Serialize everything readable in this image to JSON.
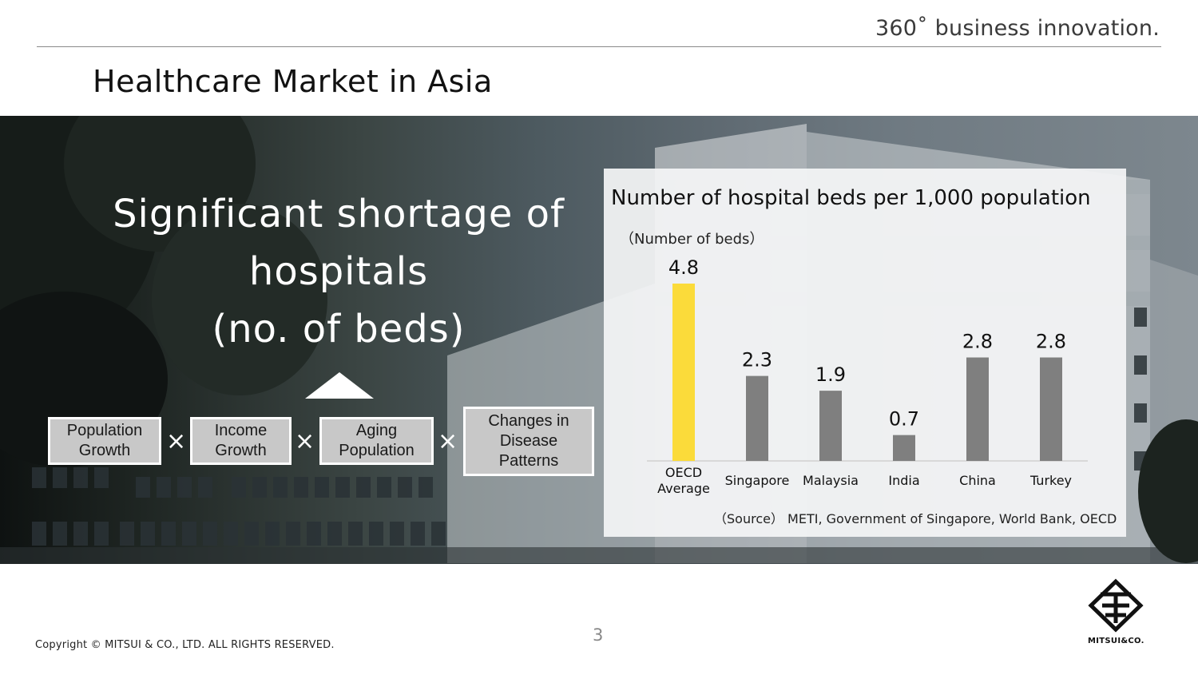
{
  "header": {
    "tagline": "360˚ business innovation.",
    "title": "Healthcare Market in Asia"
  },
  "headline": {
    "line1": "Significant shortage of",
    "line2": "hospitals",
    "line3": "(no. of beds)"
  },
  "factors": [
    {
      "label": "Population\nGrowth"
    },
    {
      "label": "Income\nGrowth"
    },
    {
      "label": "Aging\nPopulation"
    },
    {
      "label": "Changes in\nDisease\nPatterns"
    }
  ],
  "operator_symbol": "×",
  "chart_data": {
    "type": "bar",
    "title": "Number of hospital beds per 1,000 population",
    "ylabel": "（Number of beds）",
    "categories": [
      "OECD\nAverage",
      "Singapore",
      "Malaysia",
      "India",
      "China",
      "Turkey"
    ],
    "values": [
      4.8,
      2.3,
      1.9,
      0.7,
      2.8,
      2.8
    ],
    "value_labels": [
      "4.8",
      "2.3",
      "1.9",
      "0.7",
      "2.8",
      "2.8"
    ],
    "colors": [
      "#FBDB3A",
      "#7F7F7F",
      "#7F7F7F",
      "#7F7F7F",
      "#7F7F7F",
      "#7F7F7F"
    ],
    "ylim": [
      0,
      4.8
    ],
    "grid": false,
    "source": "（Source） METI, Government of Singapore, World Bank, OECD"
  },
  "footer": {
    "copyright": "Copyright © MITSUI & CO., LTD. ALL RIGHTS RESERVED.",
    "page_number": "3",
    "logo_text": "MITSUI&CO."
  }
}
